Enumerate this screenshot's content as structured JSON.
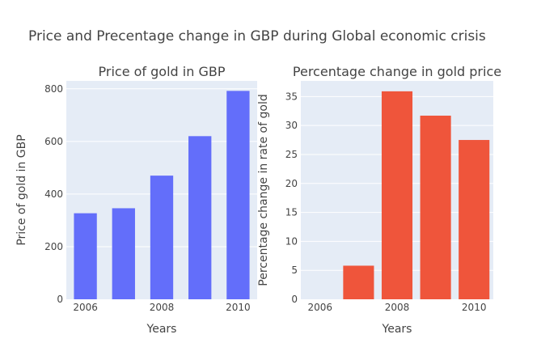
{
  "figure_title": "Price and Precentage change in GBP during Global economic crisis",
  "chart_data": [
    {
      "type": "bar",
      "title": "Price of gold in GBP",
      "xlabel": "Years",
      "ylabel": "Price of gold in GBP",
      "x": [
        2006,
        2007,
        2008,
        2009,
        2010
      ],
      "values": [
        327,
        346,
        470,
        620,
        792
      ],
      "ylim": [
        0,
        830
      ],
      "yticks": [
        0,
        200,
        400,
        600,
        800
      ],
      "xticks": [
        2006,
        2008,
        2010
      ],
      "color": "#636efa",
      "grid": true
    },
    {
      "type": "bar",
      "title": "Percentage change in gold price",
      "xlabel": "Years",
      "ylabel": "Percentage change in rate of gold",
      "x": [
        2006,
        2007,
        2008,
        2009,
        2010
      ],
      "values": [
        0,
        5.8,
        35.9,
        31.7,
        27.5
      ],
      "ylim": [
        0,
        37.7
      ],
      "yticks": [
        0,
        5,
        10,
        15,
        20,
        25,
        30,
        35
      ],
      "xticks": [
        2006,
        2008,
        2010
      ],
      "color": "#ef553b",
      "grid": true
    }
  ],
  "colors": {
    "plot_background": "#e5ecf6",
    "gridline": "#ffffff"
  }
}
